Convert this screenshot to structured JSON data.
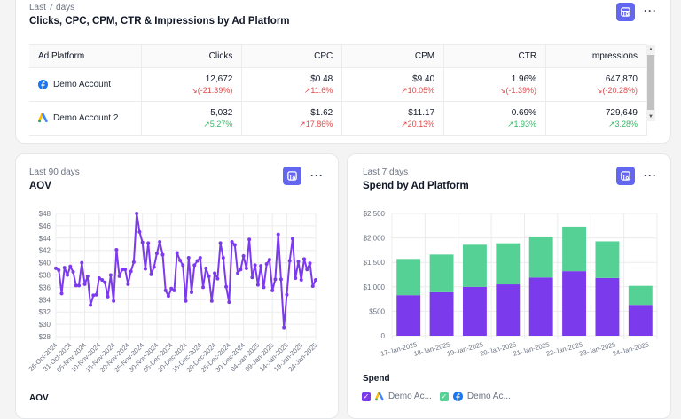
{
  "table_card": {
    "subtitle": "Last 7 days",
    "title": "Clicks, CPC, CPM, CTR & Impressions by Ad Platform",
    "columns": [
      "Ad Platform",
      "Clicks",
      "CPC",
      "CPM",
      "CTR",
      "Impressions"
    ],
    "rows": [
      {
        "platform": "Demo Account",
        "icon": "facebook-icon",
        "cells": [
          {
            "value": "12,672",
            "delta": "↘(-21.39%)",
            "trend": "neg"
          },
          {
            "value": "$0.48",
            "delta": "↗11.6%",
            "trend": "neg"
          },
          {
            "value": "$9.40",
            "delta": "↗10.05%",
            "trend": "neg"
          },
          {
            "value": "1.96%",
            "delta": "↘(-1.39%)",
            "trend": "neg"
          },
          {
            "value": "647,870",
            "delta": "↘(-20.28%)",
            "trend": "neg"
          }
        ]
      },
      {
        "platform": "Demo Account 2",
        "icon": "google-ads-icon",
        "cells": [
          {
            "value": "5,032",
            "delta": "↗5.27%",
            "trend": "pos"
          },
          {
            "value": "$1.62",
            "delta": "↗17.86%",
            "trend": "neg"
          },
          {
            "value": "$11.17",
            "delta": "↗20.13%",
            "trend": "neg"
          },
          {
            "value": "0.69%",
            "delta": "↗1.93%",
            "trend": "pos"
          },
          {
            "value": "729,649",
            "delta": "↗3.28%",
            "trend": "pos"
          }
        ]
      }
    ]
  },
  "aov_card": {
    "subtitle": "Last 90 days",
    "title": "AOV",
    "legend_title": "AOV"
  },
  "spend_card": {
    "subtitle": "Last 7 days",
    "title": "Spend by Ad Platform",
    "legend_title": "Spend",
    "legend": [
      {
        "label": "Demo Ac...",
        "icon": "google-ads-icon",
        "color": "#7c3aed"
      },
      {
        "label": "Demo Ac...",
        "icon": "facebook-icon",
        "color": "#55d196"
      }
    ]
  },
  "colors": {
    "accent": "#6366f1",
    "line": "#7c3aed",
    "google_series": "#7c3aed",
    "facebook_series": "#55d196",
    "negative": "#dc4c4c",
    "positive": "#34b864"
  },
  "chart_data": [
    {
      "type": "line",
      "title": "AOV",
      "subtitle": "Last 90 days",
      "xlabel": "",
      "ylabel": "",
      "ylim": [
        28,
        48
      ],
      "yticks": [
        "$28",
        "$30",
        "$32",
        "$34",
        "$36",
        "$38",
        "$40",
        "$42",
        "$44",
        "$46",
        "$48"
      ],
      "xticks": [
        "26-Oct-2024",
        "31-Oct-2024",
        "05-Nov-2024",
        "10-Nov-2024",
        "15-Nov-2024",
        "20-Nov-2024",
        "25-Nov-2024",
        "30-Nov-2024",
        "05-Dec-2024",
        "10-Dec-2024",
        "15-Dec-2024",
        "20-Dec-2024",
        "25-Dec-2024",
        "30-Dec-2024",
        "04-Jan-2025",
        "09-Jan-2025",
        "14-Jan-2025",
        "19-Jan-2025",
        "24-Jan-2025"
      ],
      "grid": true,
      "legend": "bottom-left",
      "series": [
        {
          "name": "AOV",
          "values": [
            39.1,
            38.8,
            35.0,
            39.2,
            38.0,
            39.4,
            38.5,
            36.3,
            36.3,
            40.0,
            36.5,
            37.8,
            33.1,
            34.7,
            34.8,
            37.5,
            37.2,
            36.8,
            34.5,
            38.0,
            33.8,
            42.1,
            37.8,
            38.9,
            38.9,
            36.5,
            38.6,
            40.1,
            48.0,
            45.0,
            43.3,
            39.0,
            43.2,
            38.1,
            39.3,
            41.5,
            43.4,
            41.3,
            35.5,
            34.6,
            35.8,
            35.5,
            41.6,
            40.4,
            39.6,
            33.8,
            40.8,
            35.2,
            39.6,
            40.3,
            40.8,
            36.0,
            39.1,
            37.8,
            33.8,
            38.3,
            37.4,
            43.2,
            40.8,
            36.1,
            33.6,
            43.4,
            42.9,
            38.3,
            38.9,
            41.1,
            39.1,
            43.8,
            37.6,
            39.6,
            36.4,
            39.5,
            36.0,
            39.8,
            40.5,
            35.5,
            37.3,
            44.6,
            37.3,
            29.5,
            34.8,
            40.3,
            43.9,
            37.5,
            40.2,
            37.2,
            40.6,
            38.9,
            39.9,
            36.2,
            37.2
          ]
        }
      ]
    },
    {
      "type": "bar",
      "stacked": true,
      "title": "Spend by Ad Platform",
      "subtitle": "Last 7 days",
      "xlabel": "",
      "ylabel": "",
      "ylim": [
        0,
        2500
      ],
      "yticks": [
        "0",
        "$500",
        "$1,000",
        "$1,500",
        "$2,000",
        "$2,500"
      ],
      "categories": [
        "17-Jan-2025",
        "18-Jan-2025",
        "19-Jan-2025",
        "20-Jan-2025",
        "21-Jan-2025",
        "22-Jan-2025",
        "23-Jan-2025",
        "24-Jan-2025"
      ],
      "grid": true,
      "legend": "bottom-left",
      "series": [
        {
          "name": "Demo Account 2 (Google Ads)",
          "values": [
            830,
            890,
            1000,
            1050,
            1190,
            1320,
            1180,
            630
          ]
        },
        {
          "name": "Demo Account (Facebook)",
          "values": [
            740,
            770,
            860,
            840,
            840,
            910,
            750,
            390
          ]
        }
      ]
    }
  ]
}
